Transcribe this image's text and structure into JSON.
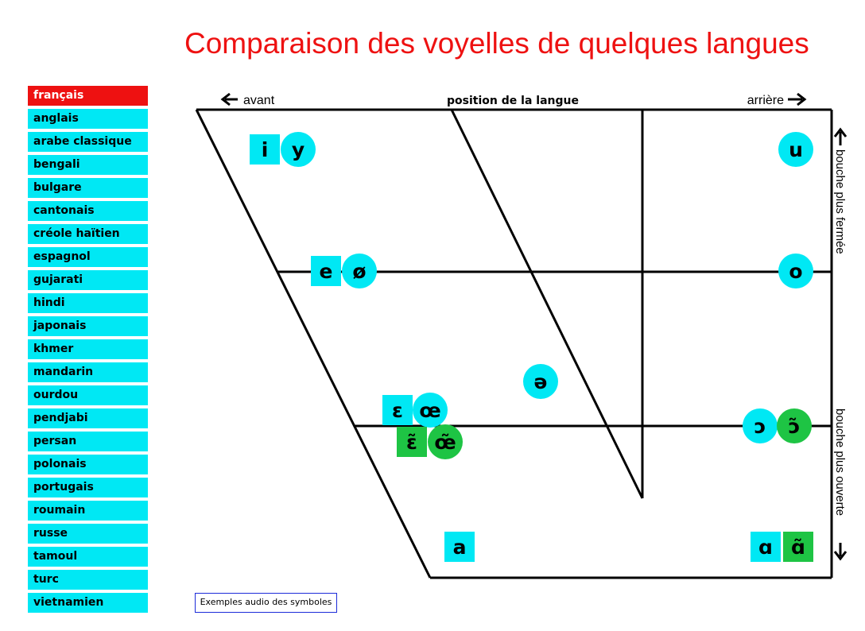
{
  "title": "Comparaison des voyelles de quelques langues",
  "languages": [
    "français",
    "anglais",
    "arabe classique",
    "bengali",
    "bulgare",
    "cantonais",
    "créole haïtien",
    "espagnol",
    "gujarati",
    "hindi",
    "japonais",
    "khmer",
    "mandarin",
    "ourdou",
    "pendjabi",
    "persan",
    "polonais",
    "portugais",
    "roumain",
    "russe",
    "tamoul",
    "turc",
    "vietnamien"
  ],
  "selected_language": "français",
  "labels": {
    "front": "avant",
    "back": "arrière",
    "top": "position de la langue",
    "closed": "bouche plus fermée",
    "open": "bouche plus ouverte"
  },
  "audio_link": "Exemples audio des symboles",
  "colors": {
    "oral": "#00e8f4",
    "nasal": "#1ec444",
    "accent": "#ee1111",
    "link_border": "#1c2bd9"
  },
  "vowels": [
    {
      "symbol": "i",
      "shape": "square",
      "color": "oral"
    },
    {
      "symbol": "y",
      "shape": "circle",
      "color": "oral"
    },
    {
      "symbol": "u",
      "shape": "circle",
      "color": "oral"
    },
    {
      "symbol": "e",
      "shape": "square",
      "color": "oral"
    },
    {
      "symbol": "ø",
      "shape": "circle",
      "color": "oral"
    },
    {
      "symbol": "o",
      "shape": "circle",
      "color": "oral"
    },
    {
      "symbol": "ə",
      "shape": "circle",
      "color": "oral"
    },
    {
      "symbol": "ɛ",
      "shape": "square",
      "color": "oral"
    },
    {
      "symbol": "œ",
      "shape": "circle",
      "color": "oral"
    },
    {
      "symbol": "ɛ̃",
      "shape": "square",
      "color": "nasal"
    },
    {
      "symbol": "œ̃",
      "shape": "circle",
      "color": "nasal"
    },
    {
      "symbol": "ɔ",
      "shape": "circle",
      "color": "oral"
    },
    {
      "symbol": "ɔ̃",
      "shape": "circle",
      "color": "nasal"
    },
    {
      "symbol": "a",
      "shape": "square",
      "color": "oral"
    },
    {
      "symbol": "ɑ",
      "shape": "square",
      "color": "oral"
    },
    {
      "symbol": "ɑ̃",
      "shape": "square",
      "color": "nasal"
    }
  ]
}
